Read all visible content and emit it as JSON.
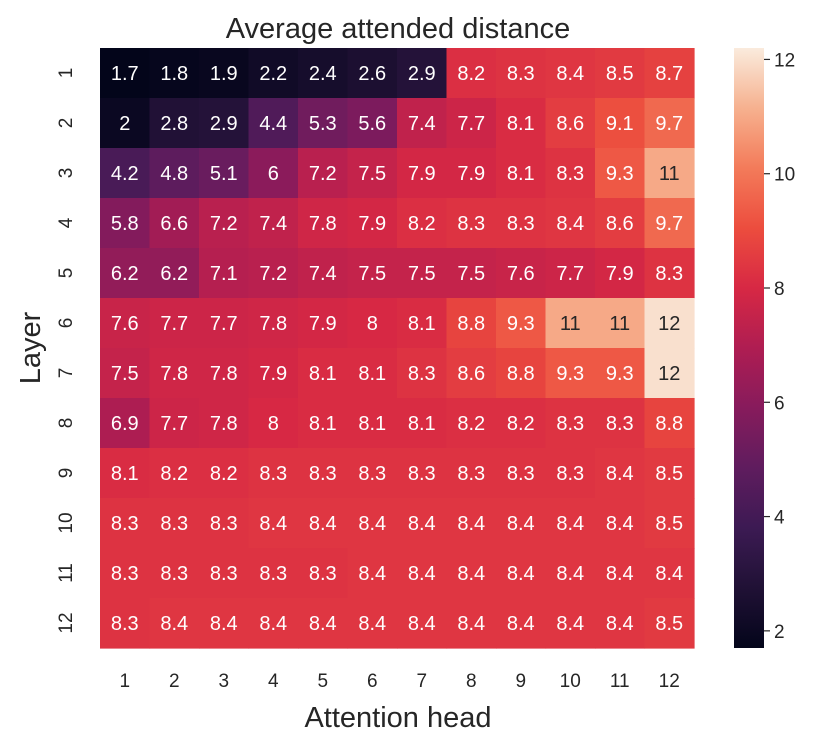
{
  "chart_data": {
    "type": "heatmap",
    "title": "Average attended distance",
    "xlabel": "Attention head",
    "ylabel": "Layer",
    "x_categories": [
      "1",
      "2",
      "3",
      "4",
      "5",
      "6",
      "7",
      "8",
      "9",
      "10",
      "11",
      "12"
    ],
    "y_categories": [
      "1",
      "2",
      "3",
      "4",
      "5",
      "6",
      "7",
      "8",
      "9",
      "10",
      "11",
      "12"
    ],
    "values": [
      [
        1.7,
        1.8,
        1.9,
        2.2,
        2.4,
        2.6,
        2.9,
        8.2,
        8.3,
        8.4,
        8.5,
        8.7
      ],
      [
        2,
        2.8,
        2.9,
        4.4,
        5.3,
        5.6,
        7.4,
        7.7,
        8.1,
        8.6,
        9.1,
        9.7
      ],
      [
        4.2,
        4.8,
        5.1,
        6,
        7.2,
        7.5,
        7.9,
        7.9,
        8.1,
        8.3,
        9.3,
        11
      ],
      [
        5.8,
        6.6,
        7.2,
        7.4,
        7.8,
        7.9,
        8.2,
        8.3,
        8.3,
        8.4,
        8.6,
        9.7
      ],
      [
        6.2,
        6.2,
        7.1,
        7.2,
        7.4,
        7.5,
        7.5,
        7.5,
        7.6,
        7.7,
        7.9,
        8.3
      ],
      [
        7.6,
        7.7,
        7.7,
        7.8,
        7.9,
        8,
        8.1,
        8.8,
        9.3,
        11,
        11,
        12
      ],
      [
        7.5,
        7.8,
        7.8,
        7.9,
        8.1,
        8.1,
        8.3,
        8.6,
        8.8,
        9.3,
        9.3,
        12
      ],
      [
        6.9,
        7.7,
        7.8,
        8,
        8.1,
        8.1,
        8.1,
        8.2,
        8.2,
        8.3,
        8.3,
        8.8
      ],
      [
        8.1,
        8.2,
        8.2,
        8.3,
        8.3,
        8.3,
        8.3,
        8.3,
        8.3,
        8.3,
        8.4,
        8.5
      ],
      [
        8.3,
        8.3,
        8.3,
        8.4,
        8.4,
        8.4,
        8.4,
        8.4,
        8.4,
        8.4,
        8.4,
        8.5
      ],
      [
        8.3,
        8.3,
        8.3,
        8.3,
        8.3,
        8.4,
        8.4,
        8.4,
        8.4,
        8.4,
        8.4,
        8.4
      ],
      [
        8.3,
        8.4,
        8.4,
        8.4,
        8.4,
        8.4,
        8.4,
        8.4,
        8.4,
        8.4,
        8.4,
        8.5
      ]
    ],
    "colorbar": {
      "min": 1.7,
      "max": 12.2,
      "ticks": [
        2,
        4,
        6,
        8,
        10,
        12
      ],
      "colormap": "rocket"
    },
    "annotation_colors": {
      "light": "#ffffff",
      "dark": "#262626"
    }
  }
}
